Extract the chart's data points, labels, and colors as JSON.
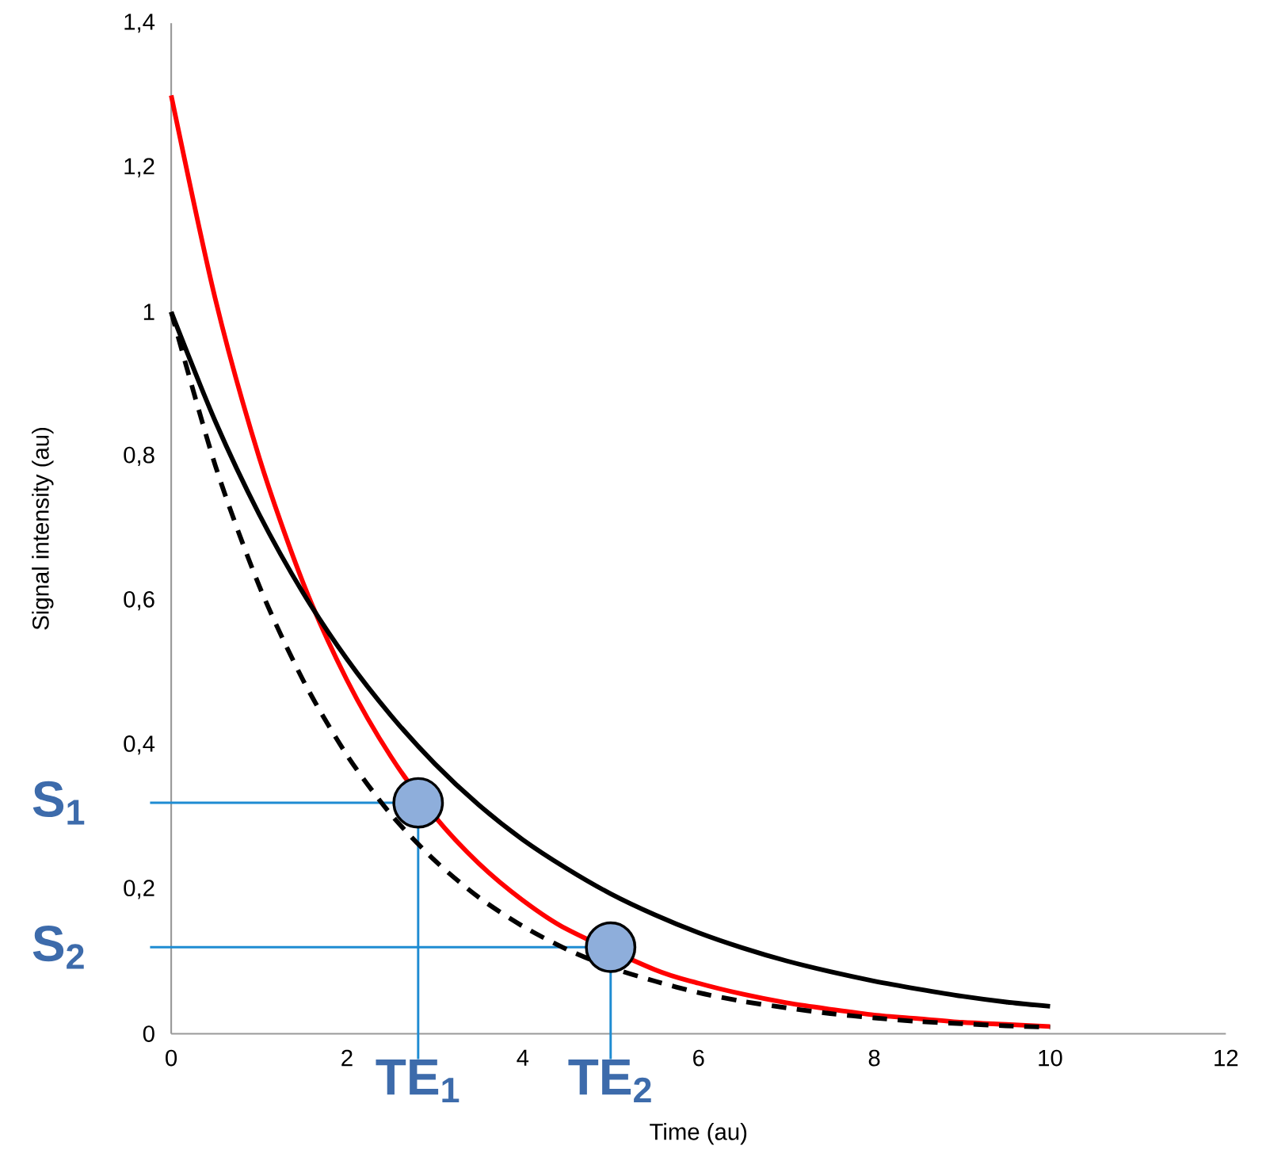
{
  "chart_data": {
    "type": "line",
    "xlabel": "Time (au)",
    "ylabel": "Signal intensity (au)",
    "x": [
      0,
      0.5,
      1,
      1.5,
      2,
      2.5,
      3,
      3.5,
      4,
      4.5,
      5,
      5.5,
      6,
      6.5,
      7,
      7.5,
      8,
      8.5,
      9,
      9.5,
      10
    ],
    "xlim": [
      0,
      12
    ],
    "ylim": [
      0,
      1.4
    ],
    "xticks": [
      0,
      2,
      4,
      6,
      8,
      10,
      12
    ],
    "yticks": [
      0,
      {
        "value": 0.2,
        "label": "0,2"
      },
      {
        "value": 0.4,
        "label": "0,4"
      },
      {
        "value": 0.6,
        "label": "0,6"
      },
      {
        "value": 0.8,
        "label": "0,8"
      },
      1,
      {
        "value": 1.2,
        "label": "1,2"
      },
      {
        "value": 1.4,
        "label": "1,4"
      }
    ],
    "series": [
      {
        "color": "#ff0000",
        "line_style": "solid",
        "values": [
          1.3,
          1.019,
          0.799,
          0.625,
          0.49,
          0.384,
          0.301,
          0.236,
          0.185,
          0.145,
          null,
          0.089,
          0.07,
          0.055,
          0.043,
          0.034,
          0.026,
          0.021,
          0.016,
          0.013,
          0.01
        ]
      },
      {
        "color": "#000000",
        "line_style": "solid",
        "values": [
          1.0,
          0.849,
          0.72,
          0.611,
          0.519,
          0.441,
          0.374,
          0.317,
          0.269,
          0.229,
          0.194,
          0.165,
          0.14,
          0.119,
          0.101,
          0.086,
          0.073,
          0.062,
          0.052,
          0.044,
          0.038
        ]
      },
      {
        "color": "#000000",
        "line_style": "dashed",
        "values": [
          1.0,
          0.788,
          0.621,
          0.49,
          0.386,
          0.304,
          0.24,
          0.189,
          0.149,
          0.117,
          0.092,
          0.073,
          0.057,
          0.045,
          0.036,
          0.028,
          0.022,
          0.017,
          0.014,
          0.011,
          0.009
        ]
      },
      {
        "type": "scatter",
        "color": "#8eaedb",
        "marker": "circle",
        "x": [
          2.81,
          5.0
        ],
        "values": [
          0.32,
          0.12
        ]
      }
    ],
    "ref_lines": [
      {
        "axis": "y",
        "value": 0.32,
        "label": "S$_{1}$",
        "color": "#1e8cd2"
      },
      {
        "axis": "y",
        "value": 0.12,
        "label": "S$_{2}$",
        "color": "#1e8cd2"
      },
      {
        "axis": "x",
        "value": 2.81,
        "label": "TE$_{1}$",
        "color": "#1e8cd2"
      },
      {
        "axis": "x",
        "value": 5.0,
        "label": "TE$_{2}$",
        "color": "#1e8cd2"
      }
    ]
  }
}
